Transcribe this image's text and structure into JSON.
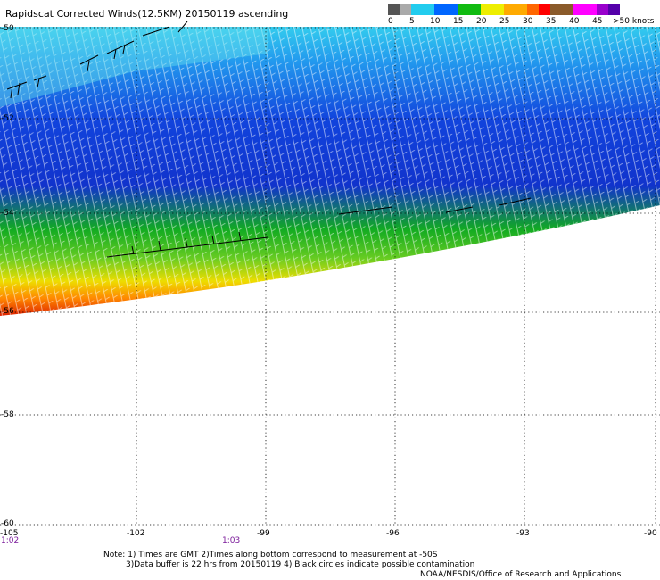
{
  "title": "Rapidscat Corrected Winds(12.5KM) 20150119 ascending",
  "legend": {
    "colors": [
      "#555555",
      "#aaaaaa",
      "#22ccee",
      "#0066ff",
      "#11bb11",
      "#eeee00",
      "#ffaa00",
      "#ff6600",
      "#ff0000",
      "#8a5a2a",
      "#ff00ff",
      "#9900cc",
      "#5500aa"
    ],
    "labels": [
      "0",
      "5",
      "10",
      "15",
      "20",
      "25",
      "30",
      "35",
      "40",
      "45",
      ">50 knots"
    ]
  },
  "lat_labels": [
    "-50",
    "-52",
    "-54",
    "-56",
    "-58",
    "-60"
  ],
  "lon_labels": [
    "-105",
    "-102",
    "-99",
    "-96",
    "-93",
    "-90"
  ],
  "time_labels": [
    "1:02",
    "1:03"
  ],
  "notes": [
    "Note: 1) Times are GMT 2)Times along bottom correspond to measurement at -50S",
    "3)Data buffer is 22 hrs from 20150119 4) Black circles indicate possible contamination",
    "NOAA/NESDIS/Office of Research and Applications"
  ]
}
